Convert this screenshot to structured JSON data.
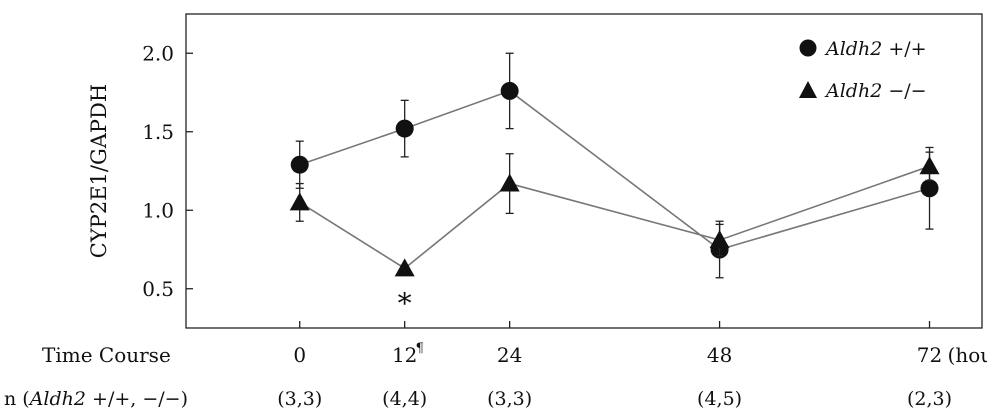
{
  "chart_data": {
    "type": "line",
    "ylabel": "CYP2E1/GAPDH",
    "ylim": [
      0.25,
      2.25
    ],
    "y_ticks": [
      "0.5",
      "1.0",
      "1.5",
      "2.0"
    ],
    "x_positions": [
      0,
      12,
      24,
      48,
      72
    ],
    "xlim": [
      -13,
      78
    ],
    "row_time": {
      "label": "Time Course",
      "ticks": [
        "0",
        "12",
        "24",
        "48",
        "72"
      ],
      "marker_12": "¶",
      "unit": "(hour)"
    },
    "row_n": {
      "label_prefix": "n (",
      "label_italic": "Aldh2",
      "label_suffix": " +/+, −/−)",
      "values": [
        "(3,3)",
        "(4,4)",
        "(3,3)",
        "(4,5)",
        "(2,3)"
      ]
    },
    "series": [
      {
        "name_italic": "Aldh2",
        "name_suffix": " +/+",
        "marker": "circle",
        "color": "#111111",
        "line_color": "#777777",
        "values": [
          1.29,
          1.52,
          1.76,
          0.75,
          1.14
        ],
        "err": [
          0.15,
          0.18,
          0.24,
          0.18,
          0.26
        ]
      },
      {
        "name_italic": "Aldh2",
        "name_suffix": " −/−",
        "marker": "triangle",
        "color": "#111111",
        "line_color": "#777777",
        "values": [
          1.05,
          0.63,
          1.17,
          0.81,
          1.28
        ],
        "err": [
          0.12,
          0.02,
          0.19,
          0.1,
          0.09
        ]
      }
    ],
    "annotations": [
      {
        "text": "*",
        "x": 12,
        "y": 0.46
      }
    ],
    "legend": "top-right",
    "grid": false
  }
}
